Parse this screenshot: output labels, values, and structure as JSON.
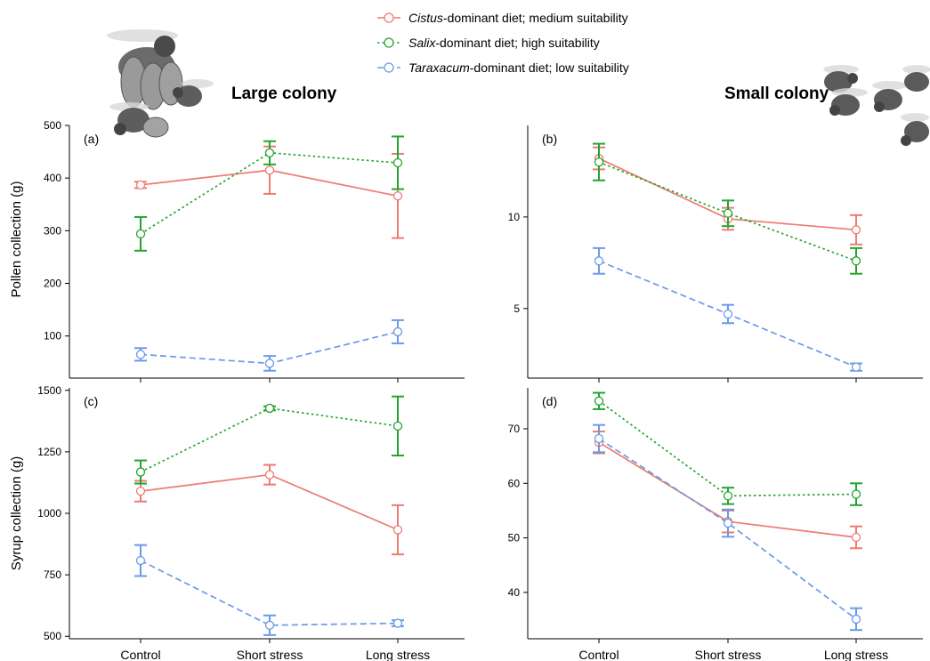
{
  "legend": [
    {
      "italic": "Cistus",
      "rest": "-dominant diet; medium suitability",
      "color": "#ee7b72",
      "dash": "solid"
    },
    {
      "italic": "Salix",
      "rest": "-dominant diet; high suitability",
      "color": "#22a52f",
      "dash": "dot"
    },
    {
      "italic": "Taraxacum",
      "rest": "-dominant diet; low suitability",
      "color": "#6a9ae9",
      "dash": "dash"
    }
  ],
  "column_titles": {
    "left": "Large colony",
    "right": "Small colony"
  },
  "row_labels": {
    "top": "Pollen collection (g)",
    "bottom": "Syrup collection (g)"
  },
  "categories": [
    "Control",
    "Short stress",
    "Long stress"
  ],
  "icons": {
    "left": "bumblebee-queen-and-workers-icon",
    "right": "bumblebee-workers-icon"
  },
  "chart_data": [
    {
      "panel": "(a)",
      "type": "line",
      "categories": [
        "Control",
        "Short stress",
        "Long stress"
      ],
      "ylim": [
        20,
        500
      ],
      "yticks": [
        100,
        200,
        300,
        400,
        500
      ],
      "series": [
        {
          "name": "Cistus-dominant diet; medium suitability",
          "values": [
            387,
            415,
            366
          ],
          "err": [
            6,
            45,
            80
          ]
        },
        {
          "name": "Salix-dominant diet; high suitability",
          "values": [
            294,
            448,
            429
          ],
          "err": [
            32,
            22,
            50
          ]
        },
        {
          "name": "Taraxacum-dominant diet; low suitability",
          "values": [
            65,
            48,
            108
          ],
          "err": [
            12,
            14,
            22
          ]
        }
      ]
    },
    {
      "panel": "(b)",
      "type": "line",
      "categories": [
        "Control",
        "Short stress",
        "Long stress"
      ],
      "ylim": [
        1.2,
        15
      ],
      "yticks": [
        5,
        10
      ],
      "series": [
        {
          "name": "Cistus-dominant diet; medium suitability",
          "values": [
            13.2,
            9.9,
            9.3
          ],
          "err": [
            0.6,
            0.6,
            0.8
          ]
        },
        {
          "name": "Salix-dominant diet; high suitability",
          "values": [
            13.0,
            10.2,
            7.6
          ],
          "err": [
            1.0,
            0.7,
            0.7
          ]
        },
        {
          "name": "Taraxacum-dominant diet; low suitability",
          "values": [
            7.6,
            4.7,
            1.8
          ],
          "err": [
            0.7,
            0.5,
            0.2
          ]
        }
      ]
    },
    {
      "panel": "(c)",
      "type": "line",
      "categories": [
        "Control",
        "Short stress",
        "Long stress"
      ],
      "ylim": [
        490,
        1510
      ],
      "yticks": [
        500,
        750,
        1000,
        1250,
        1500
      ],
      "series": [
        {
          "name": "Cistus-dominant diet; medium suitability",
          "values": [
            1090,
            1157,
            933
          ],
          "err": [
            42,
            40,
            100
          ]
        },
        {
          "name": "Salix-dominant diet; high suitability",
          "values": [
            1168,
            1427,
            1355
          ],
          "err": [
            47,
            8,
            120
          ]
        },
        {
          "name": "Taraxacum-dominant diet; low suitability",
          "values": [
            808,
            545,
            553
          ],
          "err": [
            63,
            40,
            12
          ]
        }
      ]
    },
    {
      "panel": "(d)",
      "type": "line",
      "categories": [
        "Control",
        "Short stress",
        "Long stress"
      ],
      "ylim": [
        31.5,
        77.5
      ],
      "yticks": [
        40,
        50,
        60,
        70
      ],
      "series": [
        {
          "name": "Cistus-dominant diet; medium suitability",
          "values": [
            67.5,
            53.0,
            50.1
          ],
          "err": [
            2.0,
            2.0,
            2.0
          ]
        },
        {
          "name": "Salix-dominant diet; high suitability",
          "values": [
            75.1,
            57.7,
            58.0
          ],
          "err": [
            1.5,
            1.5,
            2.0
          ]
        },
        {
          "name": "Taraxacum-dominant diet; low suitability",
          "values": [
            68.2,
            52.7,
            35.1
          ],
          "err": [
            2.5,
            2.5,
            2.0
          ]
        }
      ]
    }
  ]
}
